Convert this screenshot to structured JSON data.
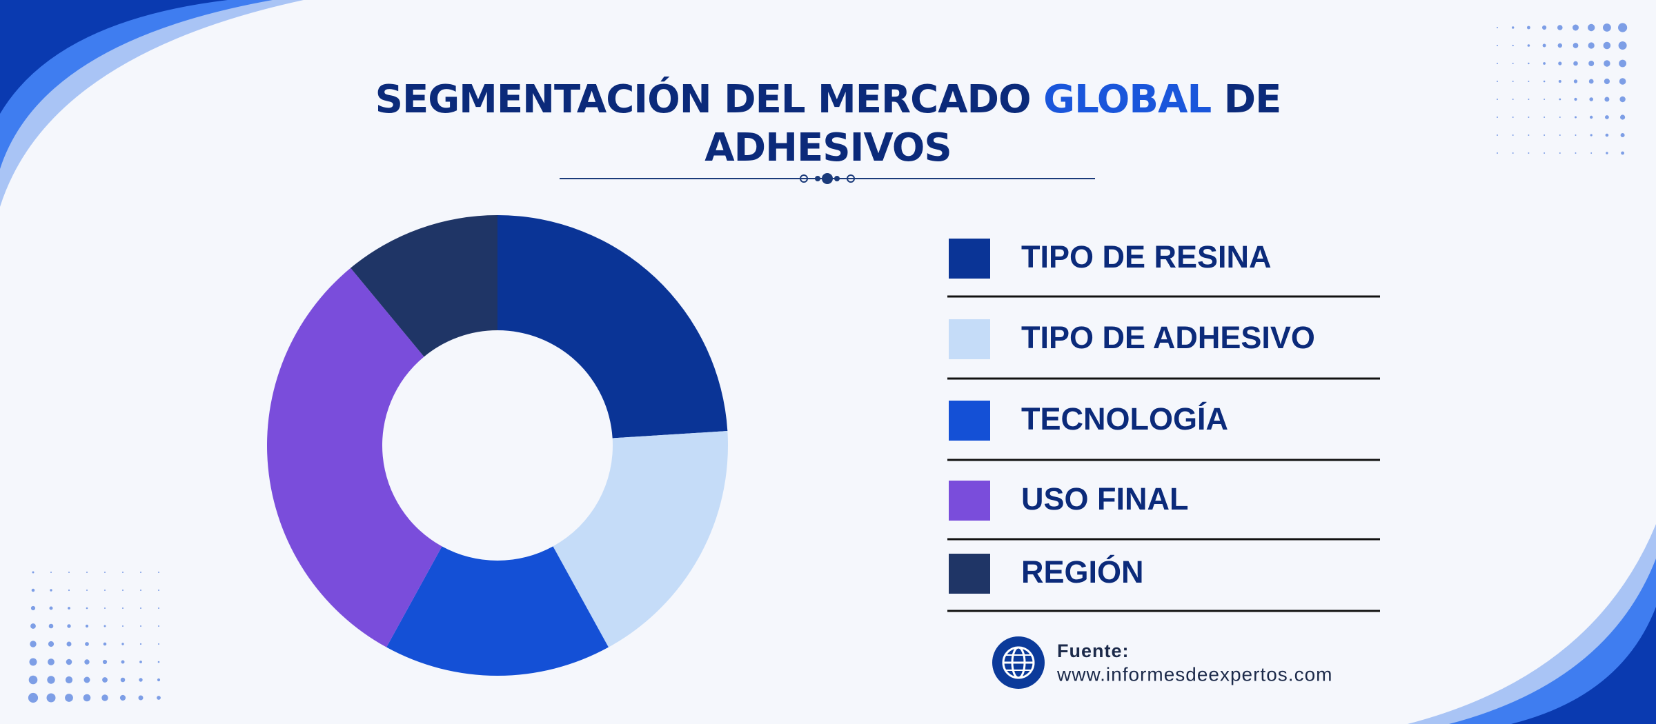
{
  "title_parts": [
    "SEGMENTACIÓN DEL MERCADO",
    "GLOBAL",
    "DE",
    "ADHESIVOS"
  ],
  "chart_data": {
    "type": "donut",
    "categories": [
      "TIPO DE RESINA",
      "TIPO DE ADHESIVO",
      "TECNOLOGÍA",
      "USO FINAL",
      "REGIÓN"
    ],
    "values": [
      24,
      18,
      16,
      31,
      11
    ],
    "colors": [
      "#0a3496",
      "#c5dcf8",
      "#1450d6",
      "#7a4ddb",
      "#1f3566"
    ]
  },
  "source": {
    "label": "Fuente:",
    "url": "www.informesdeexpertos.com"
  }
}
